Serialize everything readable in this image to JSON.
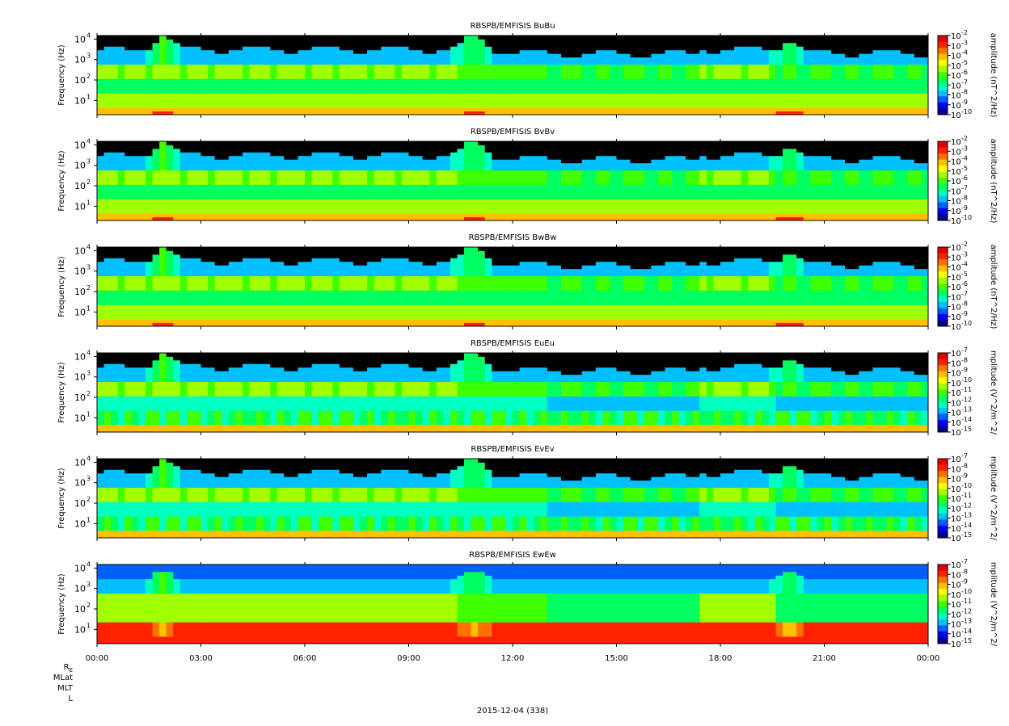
{
  "chart_data": [
    {
      "type": "heatmap",
      "title": "RBSPB/EMFISIS  BuBu",
      "ylabel": "Frequency (Hz)",
      "yscale": "log",
      "ylim": [
        2,
        15000
      ],
      "yticks": [
        {
          "exp": "1",
          "sup": "1"
        },
        {
          "exp": "2",
          "sup": "2"
        },
        {
          "exp": "3",
          "sup": "3"
        },
        {
          "exp": "4",
          "sup": "4"
        }
      ],
      "colorbar": {
        "label": "amplitude (nT^2/Hz)",
        "scale": "log",
        "range_exp": [
          -10,
          -2
        ],
        "ticks": [
          "-2",
          "-3",
          "-4",
          "-5",
          "-6",
          "-7",
          "-8",
          "-9",
          "-10"
        ]
      },
      "profile": "b"
    },
    {
      "type": "heatmap",
      "title": "RBSPB/EMFISIS  BvBv",
      "ylabel": "Frequency (Hz)",
      "yscale": "log",
      "ylim": [
        2,
        15000
      ],
      "yticks": [
        {
          "exp": "1",
          "sup": "1"
        },
        {
          "exp": "2",
          "sup": "2"
        },
        {
          "exp": "3",
          "sup": "3"
        },
        {
          "exp": "4",
          "sup": "4"
        }
      ],
      "colorbar": {
        "label": "amplitude (nT^2/Hz)",
        "scale": "log",
        "range_exp": [
          -10,
          -2
        ],
        "ticks": [
          "-2",
          "-3",
          "-4",
          "-5",
          "-6",
          "-7",
          "-8",
          "-9",
          "-10"
        ]
      },
      "profile": "b"
    },
    {
      "type": "heatmap",
      "title": "RBSPB/EMFISIS  BwBw",
      "ylabel": "Frequency (Hz)",
      "yscale": "log",
      "ylim": [
        2,
        15000
      ],
      "yticks": [
        {
          "exp": "1",
          "sup": "1"
        },
        {
          "exp": "2",
          "sup": "2"
        },
        {
          "exp": "3",
          "sup": "3"
        },
        {
          "exp": "4",
          "sup": "4"
        }
      ],
      "colorbar": {
        "label": "amplitude (nT^2/Hz)",
        "scale": "log",
        "range_exp": [
          -10,
          -2
        ],
        "ticks": [
          "-2",
          "-3",
          "-4",
          "-5",
          "-6",
          "-7",
          "-8",
          "-9",
          "-10"
        ]
      },
      "profile": "b"
    },
    {
      "type": "heatmap",
      "title": "RBSPB/EMFISIS  EuEu",
      "ylabel": "Frequency (Hz)",
      "yscale": "log",
      "ylim": [
        2,
        15000
      ],
      "yticks": [
        {
          "exp": "1",
          "sup": "1"
        },
        {
          "exp": "2",
          "sup": "2"
        },
        {
          "exp": "3",
          "sup": "3"
        },
        {
          "exp": "4",
          "sup": "4"
        }
      ],
      "colorbar": {
        "label": "mplitude (V^2/m^2/",
        "scale": "log",
        "range_exp": [
          -15,
          -7
        ],
        "ticks": [
          "-7",
          "-8",
          "-9",
          "-10",
          "-11",
          "-12",
          "-13",
          "-14",
          "-15"
        ]
      },
      "profile": "e"
    },
    {
      "type": "heatmap",
      "title": "RBSPB/EMFISIS  EvEv",
      "ylabel": "Frequency (Hz)",
      "yscale": "log",
      "ylim": [
        2,
        15000
      ],
      "yticks": [
        {
          "exp": "1",
          "sup": "1"
        },
        {
          "exp": "2",
          "sup": "2"
        },
        {
          "exp": "3",
          "sup": "3"
        },
        {
          "exp": "4",
          "sup": "4"
        }
      ],
      "colorbar": {
        "label": "mplitude (V^2/m^2/",
        "scale": "log",
        "range_exp": [
          -15,
          -7
        ],
        "ticks": [
          "-7",
          "-8",
          "-9",
          "-10",
          "-11",
          "-12",
          "-13",
          "-14",
          "-15"
        ]
      },
      "profile": "e"
    },
    {
      "type": "heatmap",
      "title": "RBSPB/EMFISIS  EwEw",
      "ylabel": "Frequency (Hz)",
      "yscale": "log",
      "ylim": [
        2,
        15000
      ],
      "yticks": [
        {
          "exp": "1",
          "sup": "1"
        },
        {
          "exp": "2",
          "sup": "2"
        },
        {
          "exp": "3",
          "sup": "3"
        },
        {
          "exp": "4",
          "sup": "4"
        }
      ],
      "colorbar": {
        "label": "mplitude (V^2/m^2/",
        "scale": "log",
        "range_exp": [
          -15,
          -7
        ],
        "ticks": [
          "-7",
          "-8",
          "-9",
          "-10",
          "-11",
          "-12",
          "-13",
          "-14",
          "-15"
        ]
      },
      "profile": "ew"
    }
  ],
  "x_axis": {
    "range_hours": [
      0,
      24
    ],
    "ticks": [
      "00:00",
      "03:00",
      "06:00",
      "09:00",
      "12:00",
      "15:00",
      "18:00",
      "21:00",
      "00:00"
    ]
  },
  "ephemeris": {
    "re": "R",
    "re_sub": "E",
    "mlat": "MLat",
    "mlt": "MLT",
    "l": "L"
  },
  "date": "2015-12-04 (338)",
  "colors": {
    "colormap": [
      "#00008b",
      "#0000ff",
      "#0060ff",
      "#00c0ff",
      "#00ffc0",
      "#00ff60",
      "#40ff00",
      "#a0ff00",
      "#ffff00",
      "#ffc000",
      "#ff7000",
      "#ff2000",
      "#e00000"
    ],
    "background": "#000000"
  }
}
